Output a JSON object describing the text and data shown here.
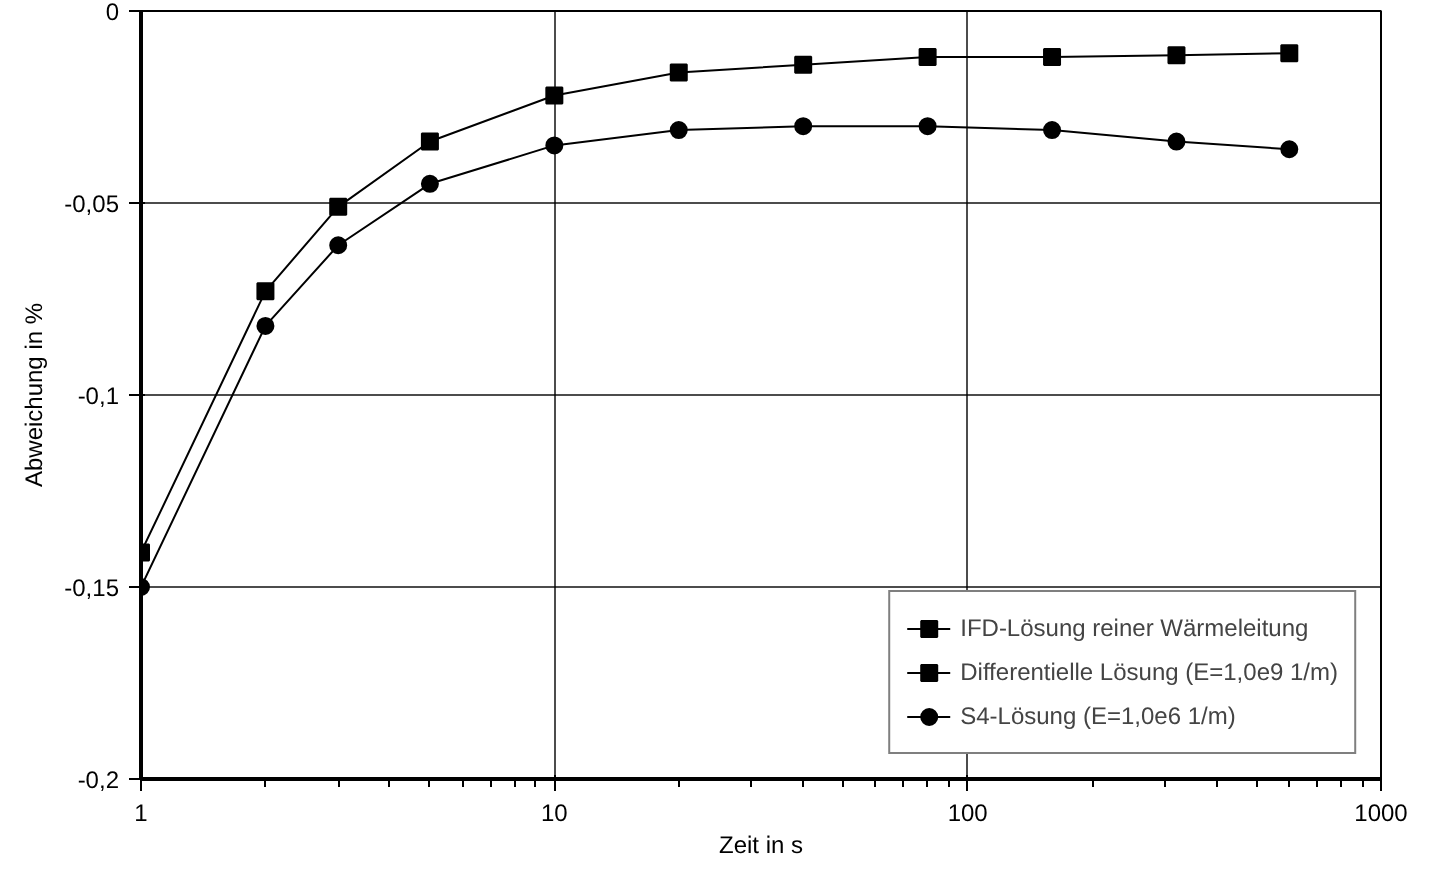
{
  "chart_data": {
    "type": "line",
    "xlabel": "Zeit in s",
    "ylabel": "Abweichung in %",
    "x": [
      1,
      2,
      3,
      5,
      10,
      20,
      40,
      80,
      160,
      320,
      600
    ],
    "series": [
      {
        "name": "IFD-Lösung reiner Wärmeleitung",
        "color": "#000000",
        "marker": "square",
        "values": [
          null,
          null,
          null,
          null,
          null,
          null,
          null,
          null,
          null,
          null,
          null
        ]
      },
      {
        "name": "Differentielle Lösung (E=1,0e9 1/m)",
        "color": "#000000",
        "marker": "square",
        "values": [
          -0.141,
          -0.073,
          -0.051,
          -0.034,
          -0.022,
          -0.016,
          -0.014,
          -0.012,
          -0.012,
          -0.0115,
          -0.011
        ]
      },
      {
        "name": "S4-Lösung (E=1,0e6 1/m)",
        "color": "#000000",
        "marker": "circle",
        "values": [
          -0.15,
          -0.082,
          -0.061,
          -0.045,
          -0.035,
          -0.031,
          -0.03,
          -0.03,
          -0.031,
          -0.034,
          -0.036
        ]
      }
    ],
    "log": "x",
    "xlim": [
      1,
      1000
    ],
    "xticks": [
      1,
      10,
      100,
      1000
    ],
    "ylim": [
      -0.2,
      0
    ],
    "yticks": [
      {
        "value": -0.2,
        "label": "-0,2"
      },
      {
        "value": -0.15,
        "label": "-0,15"
      },
      {
        "value": -0.1,
        "label": "-0,1"
      },
      {
        "value": -0.05,
        "label": "-0,05"
      },
      0
    ],
    "grid": true,
    "legend": "bottom right",
    "line_style": "solid"
  }
}
